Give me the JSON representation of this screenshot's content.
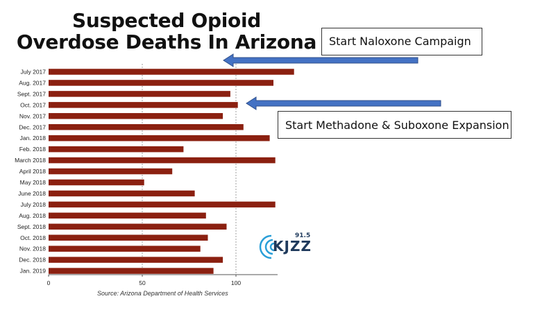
{
  "title_line1": "Suspected Opioid",
  "title_line2": "Overdose Deaths In Arizona",
  "callouts": {
    "naloxone": "Start Naloxone Campaign",
    "methadone": "Start Methadone & Suboxone Expansion"
  },
  "logo": {
    "name": "KJZZ",
    "frequency": "91.5"
  },
  "source": "Source: Arizona Department of Health Services",
  "colors": {
    "bar": "#8b2010",
    "arrow": "#4472c4",
    "arrow_outline": "#2f4f8a",
    "grid": "#888888"
  },
  "chart_data": {
    "type": "bar",
    "orientation": "horizontal",
    "categories": [
      "July 2017",
      "Aug. 2017",
      "Sept. 2017",
      "Oct. 2017",
      "Nov. 2017",
      "Dec. 2017",
      "Jan. 2018",
      "Feb. 2018",
      "March 2018",
      "April 2018",
      "May 2018",
      "June 2018",
      "July 2018",
      "Aug. 2018",
      "Sept. 2018",
      "Oct. 2018",
      "Nov. 2018",
      "Dec. 2018",
      "Jan. 2019"
    ],
    "values": [
      131,
      120,
      97,
      101,
      93,
      104,
      118,
      72,
      121,
      66,
      51,
      78,
      121,
      84,
      95,
      85,
      81,
      93,
      88
    ],
    "xticks": [
      "0",
      "50",
      "100"
    ],
    "xlim": [
      0,
      130
    ],
    "grid": "vertical dashed",
    "annotations": [
      {
        "text": "Start Naloxone Campaign",
        "points_to": "July 2017"
      },
      {
        "text": "Start Methadone & Suboxone Expansion",
        "points_to": "Oct. 2017"
      }
    ]
  }
}
